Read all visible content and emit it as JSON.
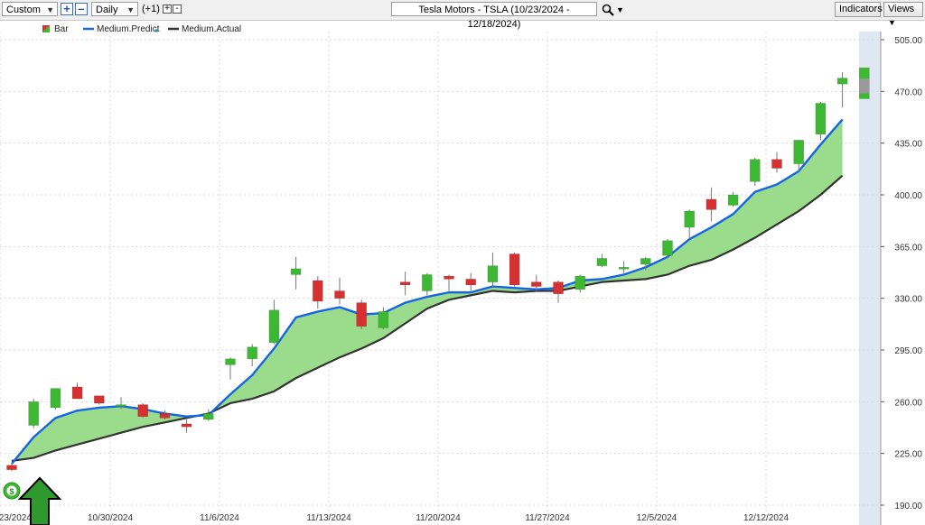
{
  "toolbar": {
    "period_select": "Custom",
    "interval_select": "Daily",
    "offset_label": "(+1)",
    "symbol_title": "Tesla Motors - TSLA (10/23/2024 - 12/18/2024)",
    "indicators_button": "Indicators",
    "views_button": "Views"
  },
  "colors": {
    "predict_line": "#1565e8",
    "actual_line": "#333333",
    "fill": "#9bdc8c",
    "up_candle": "#3cb832",
    "down_candle": "#d63030",
    "future_band": "#dfe8f2",
    "arrow": "#2e9a2e"
  },
  "chart_data": {
    "type": "candlestick",
    "title": "Tesla Motors - TSLA (10/23/2024 - 12/18/2024)",
    "legend": [
      "Bar",
      "Medium.Predict",
      "Medium.Actual"
    ],
    "ylim": [
      190,
      505
    ],
    "y_ticks": [
      "505.00",
      "470.00",
      "435.00",
      "400.00",
      "365.00",
      "330.00",
      "295.00",
      "260.00",
      "225.00",
      "190.00"
    ],
    "x_tick_labels": [
      "/23/2024",
      "10/30/2024",
      "11/6/2024",
      "11/13/2024",
      "11/20/2024",
      "11/27/2024",
      "12/5/2024",
      "12/12/2024"
    ],
    "x_tick_index": [
      0,
      5,
      10,
      15,
      20,
      25,
      30,
      35
    ],
    "bars": [
      {
        "date": "10/23/2024",
        "open": 217,
        "high": 219,
        "low": 213,
        "close": 214
      },
      {
        "date": "10/24/2024",
        "open": 244,
        "high": 262,
        "low": 242,
        "close": 260
      },
      {
        "date": "10/25/2024",
        "open": 256,
        "high": 269,
        "low": 255,
        "close": 269
      },
      {
        "date": "10/28/2024",
        "open": 270,
        "high": 273,
        "low": 262,
        "close": 262
      },
      {
        "date": "10/29/2024",
        "open": 264,
        "high": 264,
        "low": 258,
        "close": 259
      },
      {
        "date": "10/30/2024",
        "open": 258,
        "high": 263,
        "low": 255,
        "close": 258
      },
      {
        "date": "10/31/2024",
        "open": 258,
        "high": 259,
        "low": 249,
        "close": 250
      },
      {
        "date": "11/1/2024",
        "open": 252,
        "high": 254,
        "low": 248,
        "close": 249
      },
      {
        "date": "11/4/2024",
        "open": 245,
        "high": 248,
        "low": 239,
        "close": 243
      },
      {
        "date": "11/5/2024",
        "open": 248,
        "high": 255,
        "low": 247,
        "close": 252
      },
      {
        "date": "11/6/2024",
        "open": 285,
        "high": 290,
        "low": 275,
        "close": 289
      },
      {
        "date": "11/7/2024",
        "open": 289,
        "high": 299,
        "low": 284,
        "close": 297
      },
      {
        "date": "11/8/2024",
        "open": 300,
        "high": 329,
        "low": 299,
        "close": 322
      },
      {
        "date": "11/11/2024",
        "open": 346,
        "high": 358,
        "low": 336,
        "close": 350
      },
      {
        "date": "11/12/2024",
        "open": 342,
        "high": 345,
        "low": 323,
        "close": 328
      },
      {
        "date": "11/13/2024",
        "open": 335,
        "high": 344,
        "low": 326,
        "close": 330
      },
      {
        "date": "11/14/2024",
        "open": 327,
        "high": 329,
        "low": 309,
        "close": 311
      },
      {
        "date": "11/15/2024",
        "open": 310,
        "high": 324,
        "low": 309,
        "close": 321
      },
      {
        "date": "11/18/2024",
        "open": 341,
        "high": 348,
        "low": 332,
        "close": 339
      },
      {
        "date": "11/19/2024",
        "open": 335,
        "high": 347,
        "low": 332,
        "close": 346
      },
      {
        "date": "11/20/2024",
        "open": 345,
        "high": 346,
        "low": 335,
        "close": 343
      },
      {
        "date": "11/21/2024",
        "open": 343,
        "high": 347,
        "low": 335,
        "close": 339
      },
      {
        "date": "11/22/2024",
        "open": 341,
        "high": 361,
        "low": 337,
        "close": 352
      },
      {
        "date": "11/25/2024",
        "open": 360,
        "high": 361,
        "low": 338,
        "close": 339
      },
      {
        "date": "11/26/2024",
        "open": 341,
        "high": 346,
        "low": 335,
        "close": 338
      },
      {
        "date": "11/27/2024",
        "open": 341,
        "high": 342,
        "low": 327,
        "close": 333
      },
      {
        "date": "11/29/2024",
        "open": 336,
        "high": 346,
        "low": 334,
        "close": 345
      },
      {
        "date": "12/2/2024",
        "open": 352,
        "high": 360,
        "low": 351,
        "close": 357
      },
      {
        "date": "12/3/2024",
        "open": 351,
        "high": 355,
        "low": 347,
        "close": 351
      },
      {
        "date": "12/4/2024",
        "open": 353,
        "high": 358,
        "low": 349,
        "close": 357
      },
      {
        "date": "12/5/2024",
        "open": 359,
        "high": 370,
        "low": 357,
        "close": 369
      },
      {
        "date": "12/6/2024",
        "open": 378,
        "high": 390,
        "low": 370,
        "close": 389
      },
      {
        "date": "12/9/2024",
        "open": 397,
        "high": 405,
        "low": 382,
        "close": 390
      },
      {
        "date": "12/10/2024",
        "open": 393,
        "high": 402,
        "low": 392,
        "close": 400
      },
      {
        "date": "12/11/2024",
        "open": 409,
        "high": 425,
        "low": 406,
        "close": 424
      },
      {
        "date": "12/12/2024",
        "open": 424,
        "high": 429,
        "low": 415,
        "close": 418
      },
      {
        "date": "12/13/2024",
        "open": 421,
        "high": 437,
        "low": 416,
        "close": 437
      },
      {
        "date": "12/16/2024",
        "open": 441,
        "high": 463,
        "low": 437,
        "close": 462
      },
      {
        "date": "12/17/2024",
        "open": 475,
        "high": 483,
        "low": 459,
        "close": 479
      },
      {
        "date": "12/18/2024",
        "open": 465,
        "high": 486,
        "low": 465,
        "close": 486
      }
    ],
    "series": [
      {
        "name": "Medium.Predict",
        "values": [
          218,
          236,
          249,
          254,
          256,
          257,
          255,
          252,
          250,
          251,
          265,
          278,
          296,
          317,
          321,
          324,
          319,
          320,
          327,
          331,
          334,
          334,
          338,
          337,
          336,
          337,
          342,
          343,
          346,
          351,
          358,
          370,
          378,
          387,
          402,
          407,
          416,
          434,
          451
        ]
      },
      {
        "name": "Medium.Actual",
        "values": [
          220,
          222,
          227,
          231,
          235,
          239,
          243,
          246,
          249,
          252,
          259,
          262,
          267,
          276,
          283,
          290,
          296,
          303,
          313,
          323,
          329,
          332,
          335,
          334,
          335,
          335,
          338,
          341,
          342,
          343,
          346,
          352,
          356,
          363,
          371,
          380,
          389,
          400,
          413
        ]
      }
    ]
  }
}
